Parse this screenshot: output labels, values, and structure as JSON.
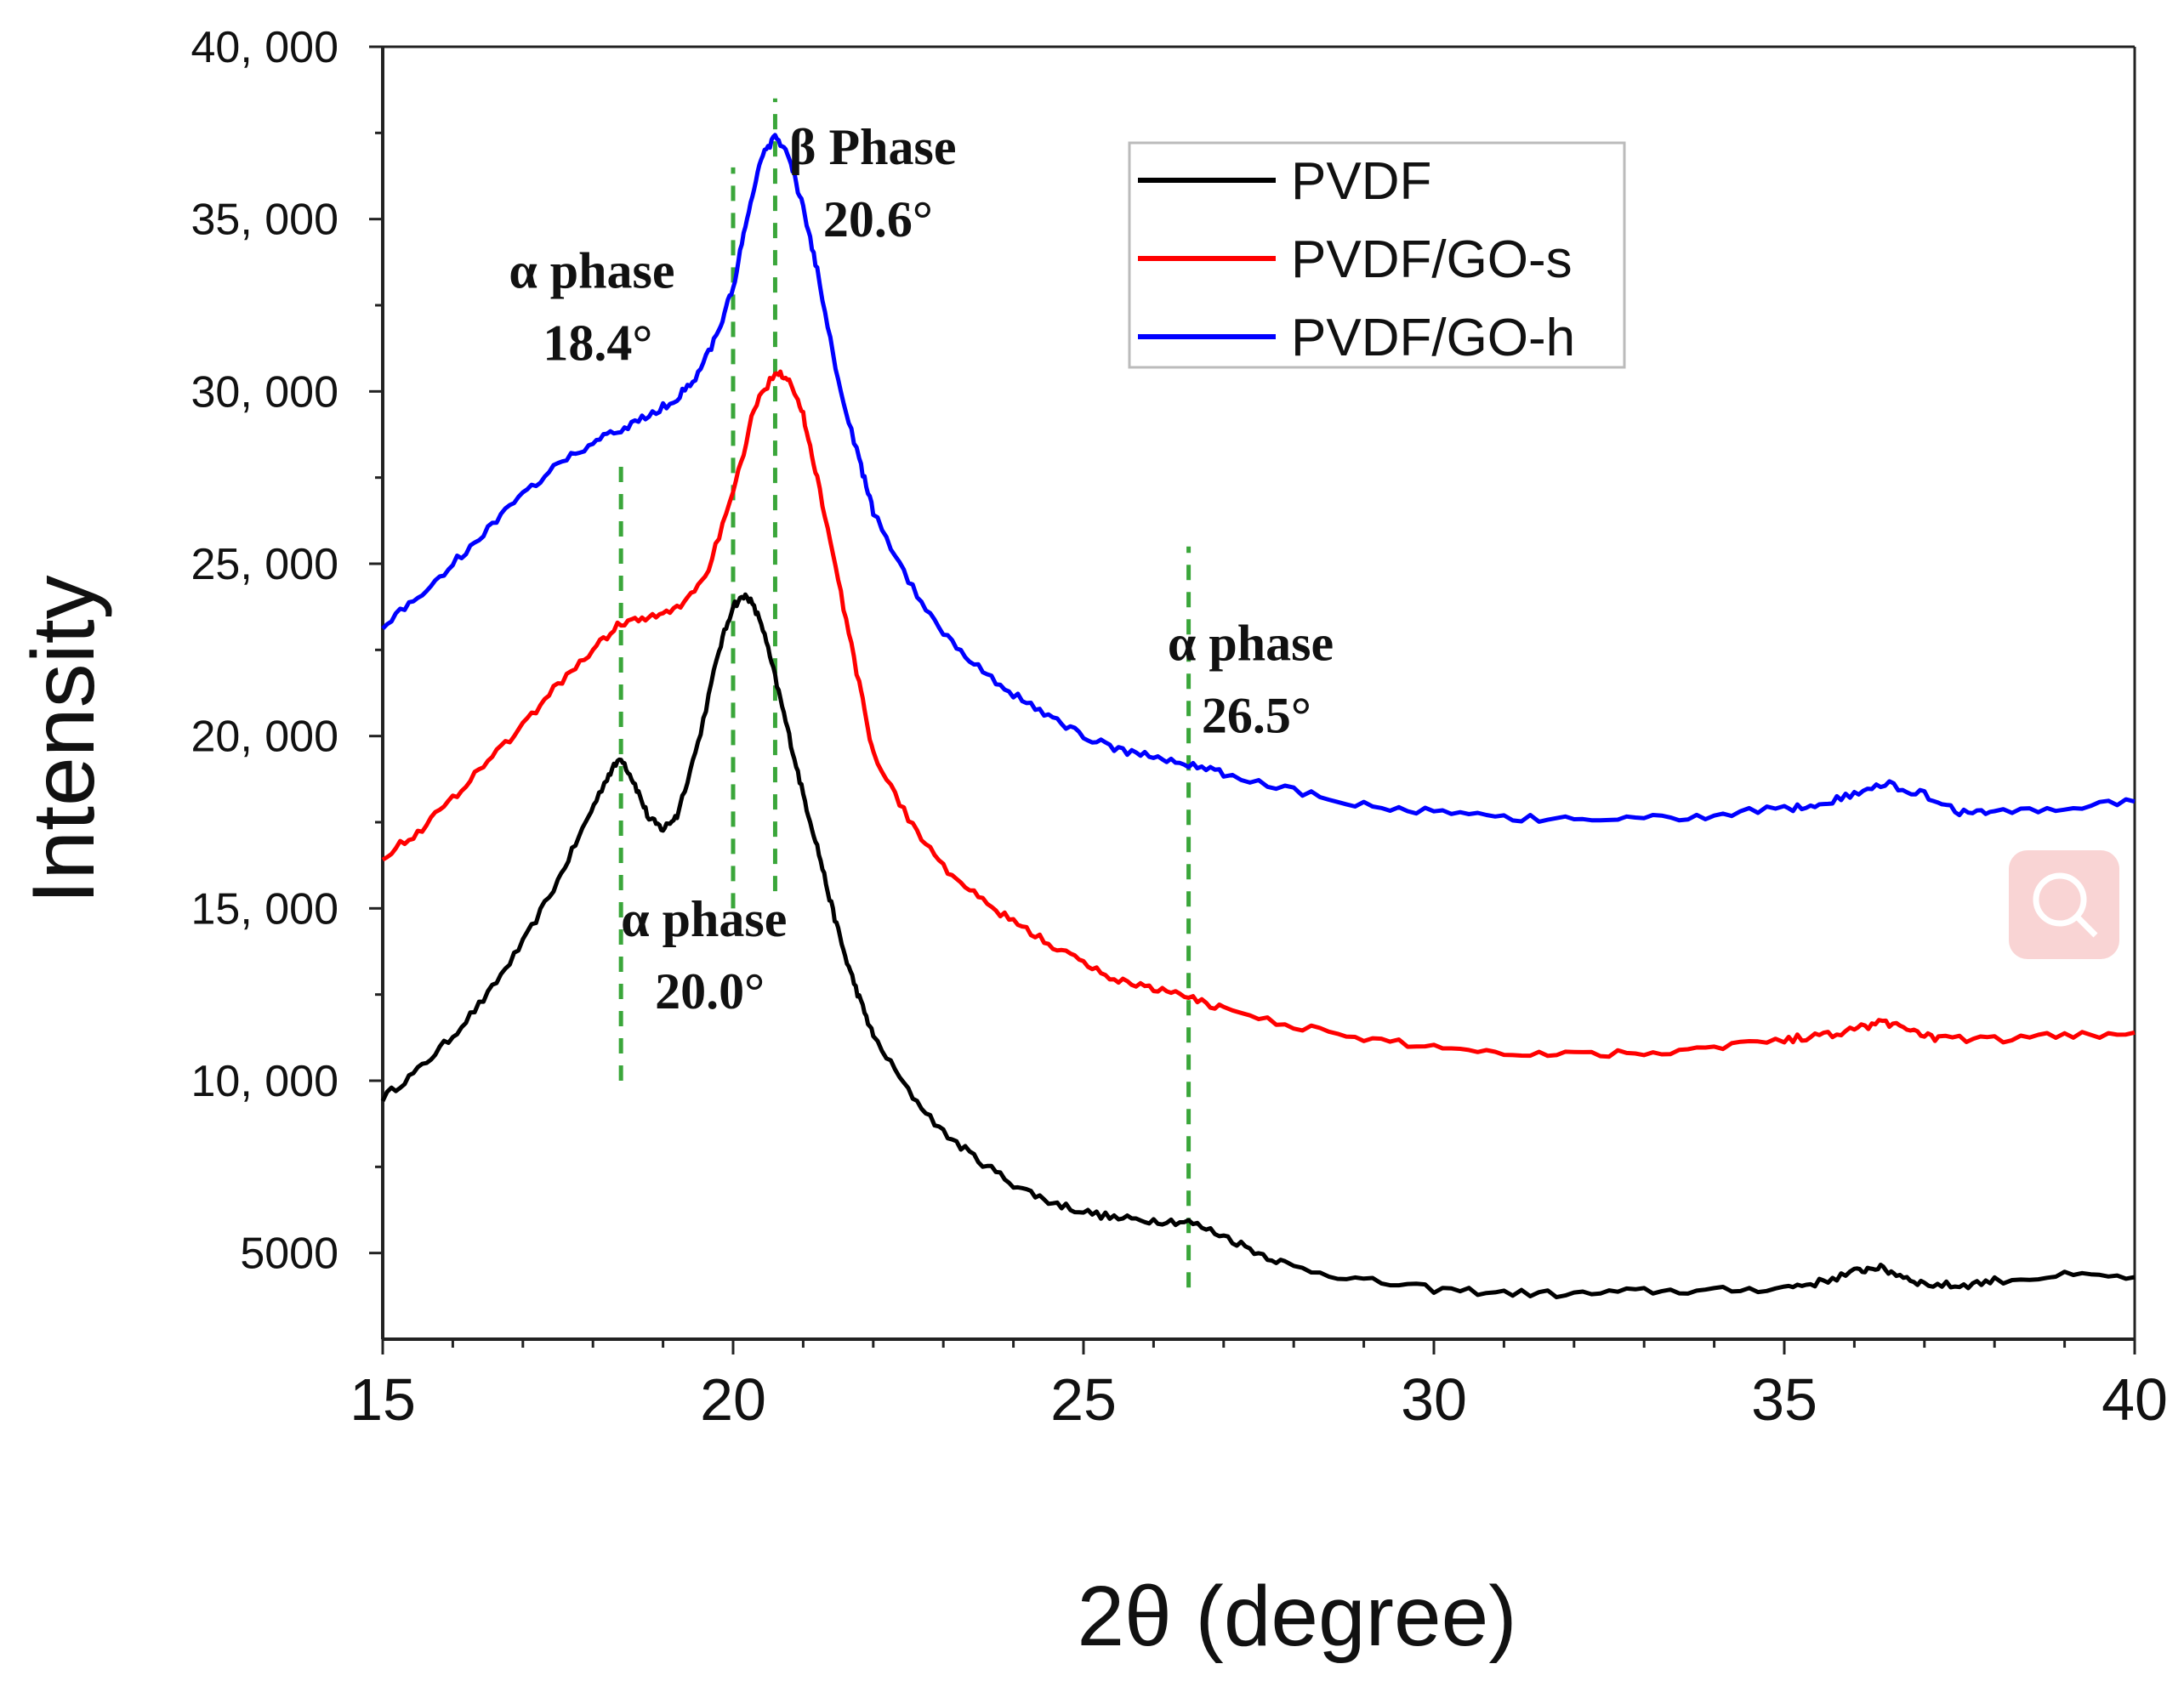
{
  "chart_data": {
    "type": "line",
    "title": "",
    "xlabel": "2θ (degree)",
    "ylabel": "Intensity",
    "xlim": [
      15,
      40
    ],
    "ylim": [
      2500,
      40000
    ],
    "grid": false,
    "legend_position": "top-right",
    "x_ticks": [
      15,
      20,
      25,
      30,
      35,
      40
    ],
    "x_tick_labels": [
      "15",
      "20",
      "25",
      "30",
      "35",
      "40"
    ],
    "y_ticks": [
      5000,
      10000,
      15000,
      20000,
      25000,
      30000,
      35000,
      40000
    ],
    "y_tick_labels": [
      "5000",
      "10, 000",
      "15, 000",
      "20, 000",
      "25, 000",
      "30, 000",
      "35, 000",
      "40, 000"
    ],
    "series": [
      {
        "name": "PVDF",
        "color": "#000000",
        "x": [
          15,
          15.5,
          16,
          16.5,
          17,
          17.5,
          17.9,
          18.2,
          18.4,
          18.6,
          18.8,
          19.0,
          19.2,
          19.5,
          19.8,
          20.0,
          20.2,
          20.4,
          20.6,
          20.8,
          21.0,
          21.2,
          21.4,
          21.6,
          21.8,
          22.0,
          22.5,
          23.0,
          23.5,
          24.0,
          24.5,
          25.0,
          25.5,
          26.0,
          26.5,
          27.0,
          27.5,
          28.0,
          29.0,
          30.0,
          31.0,
          32.0,
          33.0,
          34.0,
          35.0,
          35.5,
          36.0,
          36.3,
          36.6,
          37.0,
          37.5,
          38.0,
          39.0,
          40.0
        ],
        "values": [
          9500,
          10300,
          11300,
          12500,
          14000,
          15800,
          17500,
          18800,
          19400,
          18600,
          17600,
          17300,
          17700,
          19800,
          22500,
          23800,
          24100,
          23300,
          21700,
          20000,
          18300,
          16800,
          15100,
          13600,
          12400,
          11300,
          9700,
          8500,
          7700,
          7000,
          6500,
          6200,
          6000,
          5950,
          5900,
          5500,
          5000,
          4600,
          4200,
          3950,
          3850,
          3800,
          3900,
          3900,
          4000,
          4150,
          4450,
          4600,
          4400,
          4100,
          4050,
          4200,
          4350,
          4300
        ]
      },
      {
        "name": "PVDF/GO-s",
        "color": "#ff0000",
        "x": [
          15,
          15.5,
          16,
          16.5,
          17,
          17.5,
          18.0,
          18.4,
          18.8,
          19.2,
          19.6,
          20.0,
          20.3,
          20.6,
          20.8,
          21.0,
          21.2,
          21.5,
          21.8,
          22.0,
          22.5,
          23.0,
          23.5,
          24.0,
          24.5,
          25.0,
          25.5,
          26.0,
          26.5,
          27.0,
          28.0,
          29.0,
          30.0,
          31.0,
          32.0,
          33.0,
          34.0,
          35.0,
          35.5,
          36.0,
          36.4,
          36.8,
          37.2,
          38.0,
          39.0,
          40.0
        ],
        "values": [
          16500,
          17200,
          18200,
          19300,
          20300,
          21500,
          22500,
          23300,
          23400,
          23700,
          24600,
          27000,
          29500,
          30600,
          30400,
          29300,
          27500,
          24500,
          21500,
          19500,
          17600,
          16200,
          15300,
          14600,
          14000,
          13400,
          12900,
          12700,
          12400,
          12100,
          11600,
          11200,
          11000,
          10800,
          10800,
          10800,
          11000,
          11200,
          11300,
          11500,
          11700,
          11500,
          11200,
          11200,
          11300,
          11400
        ]
      },
      {
        "name": "PVDF/GO-h",
        "color": "#0000ff",
        "x": [
          15,
          15.5,
          16,
          16.5,
          17,
          17.5,
          18.0,
          18.4,
          18.8,
          19.2,
          19.5,
          19.8,
          20.0,
          20.2,
          20.4,
          20.6,
          20.8,
          21.0,
          21.2,
          21.5,
          21.8,
          22.0,
          22.5,
          23.0,
          23.5,
          24.0,
          24.5,
          25.0,
          25.5,
          26.0,
          26.5,
          27.0,
          28.0,
          29.0,
          30.0,
          31.0,
          32.0,
          33.0,
          34.0,
          35.0,
          35.5,
          36.0,
          36.5,
          37.0,
          37.5,
          38.0,
          39.0,
          40.0
        ],
        "values": [
          23200,
          24000,
          25000,
          26000,
          27000,
          27900,
          28500,
          28900,
          29300,
          29800,
          30500,
          31800,
          33000,
          35000,
          36800,
          37400,
          36800,
          35300,
          33500,
          30300,
          28000,
          26500,
          24500,
          23000,
          22000,
          21200,
          20600,
          20000,
          19600,
          19400,
          19200,
          18900,
          18400,
          18000,
          17800,
          17600,
          17600,
          17600,
          17700,
          17900,
          18000,
          18300,
          18600,
          18300,
          17800,
          17800,
          17900,
          18100
        ]
      }
    ],
    "annotations": [
      {
        "line": "phase_line_1",
        "x": 18.4,
        "y_range": [
          10000,
          28000
        ],
        "label_lines": [
          "α  phase",
          "18.4°"
        ],
        "label_at": [
          16.8,
          33000
        ]
      },
      {
        "line": "phase_line_2",
        "x": 20.0,
        "y_range": [
          15000,
          36500
        ],
        "label_lines": [
          "α  phase",
          "20.0°"
        ],
        "label_at": [
          18.4,
          14200
        ]
      },
      {
        "line": "phase_line_3",
        "x": 20.6,
        "y_range": [
          15500,
          38500
        ],
        "label_lines": [
          "β  Phase",
          "20.6°"
        ],
        "label_at": [
          20.8,
          36600
        ]
      },
      {
        "line": "phase_line_4",
        "x": 26.5,
        "y_range": [
          4000,
          25500
        ],
        "label_lines": [
          "α  phase",
          "26.5°"
        ],
        "label_at": [
          26.2,
          22200
        ]
      }
    ]
  },
  "overlay": {
    "icon": "magnify-icon",
    "color": "#f7c5c5"
  }
}
